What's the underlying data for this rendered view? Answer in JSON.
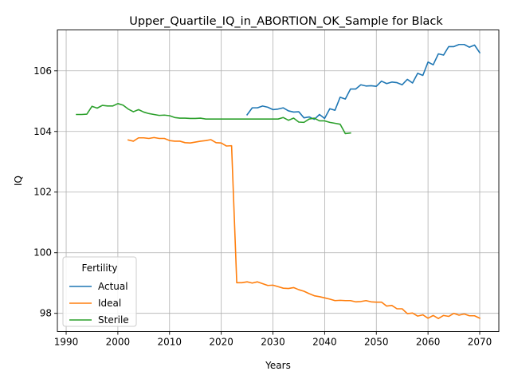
{
  "chart_data": {
    "type": "line",
    "title": "Upper_Quartile_IQ_in_ABORTION_OK_Sample for Black",
    "xlabel": "Years",
    "ylabel": "IQ",
    "xlim": [
      1988.3,
      2073.7
    ],
    "ylim": [
      97.4,
      107.35
    ],
    "x_ticks": [
      1990,
      2000,
      2010,
      2020,
      2030,
      2040,
      2050,
      2060,
      2070
    ],
    "y_ticks": [
      98,
      100,
      102,
      104,
      106
    ],
    "grid": true,
    "legend": {
      "title": "Fertility",
      "placement": "lower-left"
    },
    "series": [
      {
        "name": "Actual",
        "color": "#1f77b4",
        "x": [
          2025,
          2026,
          2027,
          2028,
          2029,
          2030,
          2031,
          2032,
          2033,
          2034,
          2035,
          2036,
          2037,
          2038,
          2039,
          2040,
          2041,
          2042,
          2043,
          2044,
          2045,
          2046,
          2047,
          2048,
          2049,
          2050,
          2051,
          2052,
          2053,
          2054,
          2055,
          2056,
          2057,
          2058,
          2059,
          2060,
          2061,
          2062,
          2063,
          2064,
          2065,
          2066,
          2067,
          2068,
          2069,
          2070
        ],
        "y": [
          104.55,
          104.78,
          104.78,
          104.84,
          104.8,
          104.72,
          104.74,
          104.78,
          104.68,
          104.64,
          104.65,
          104.45,
          104.48,
          104.4,
          104.56,
          104.43,
          104.75,
          104.7,
          105.13,
          105.07,
          105.4,
          105.4,
          105.54,
          105.5,
          105.51,
          105.49,
          105.66,
          105.58,
          105.63,
          105.61,
          105.54,
          105.72,
          105.6,
          105.92,
          105.85,
          106.29,
          106.2,
          106.56,
          106.52,
          106.8,
          106.8,
          106.87,
          106.87,
          106.78,
          106.85,
          106.6
        ]
      },
      {
        "name": "Ideal",
        "color": "#ff7f0e",
        "x": [
          2002,
          2003,
          2004,
          2005,
          2006,
          2007,
          2008,
          2009,
          2010,
          2011,
          2012,
          2013,
          2014,
          2015,
          2016,
          2017,
          2018,
          2019,
          2020,
          2021,
          2022,
          2023,
          2024,
          2025,
          2026,
          2027,
          2028,
          2029,
          2030,
          2031,
          2032,
          2033,
          2034,
          2035,
          2036,
          2037,
          2038,
          2039,
          2040,
          2041,
          2042,
          2043,
          2044,
          2045,
          2046,
          2047,
          2048,
          2049,
          2050,
          2051,
          2052,
          2053,
          2054,
          2055,
          2056,
          2057,
          2058,
          2059,
          2060,
          2061,
          2062,
          2063,
          2064,
          2065,
          2066,
          2067,
          2068,
          2069,
          2070
        ],
        "y": [
          103.72,
          103.68,
          103.79,
          103.79,
          103.77,
          103.8,
          103.77,
          103.77,
          103.7,
          103.68,
          103.68,
          103.63,
          103.62,
          103.65,
          103.68,
          103.7,
          103.73,
          103.63,
          103.62,
          103.52,
          103.53,
          99.01,
          99.01,
          99.04,
          99.0,
          99.04,
          98.98,
          98.92,
          98.93,
          98.88,
          98.83,
          98.82,
          98.85,
          98.78,
          98.73,
          98.65,
          98.58,
          98.55,
          98.51,
          98.47,
          98.42,
          98.43,
          98.42,
          98.42,
          98.38,
          98.39,
          98.42,
          98.38,
          98.37,
          98.37,
          98.24,
          98.26,
          98.15,
          98.15,
          97.99,
          98.01,
          97.91,
          97.95,
          97.84,
          97.93,
          97.83,
          97.93,
          97.9,
          98.0,
          97.94,
          97.98,
          97.92,
          97.92,
          97.84
        ]
      },
      {
        "name": "Sterile",
        "color": "#2ca02c",
        "x": [
          1992,
          1993,
          1994,
          1995,
          1996,
          1997,
          1998,
          1999,
          2000,
          2001,
          2002,
          2003,
          2004,
          2005,
          2006,
          2007,
          2008,
          2009,
          2010,
          2011,
          2012,
          2013,
          2014,
          2015,
          2016,
          2017,
          2018,
          2019,
          2020,
          2021,
          2022,
          2023,
          2024,
          2025,
          2026,
          2027,
          2028,
          2029,
          2030,
          2031,
          2032,
          2033,
          2034,
          2035,
          2036,
          2037,
          2038,
          2039,
          2040,
          2041,
          2042,
          2043,
          2044,
          2045
        ],
        "y": [
          104.56,
          104.56,
          104.57,
          104.83,
          104.77,
          104.86,
          104.84,
          104.84,
          104.92,
          104.87,
          104.74,
          104.65,
          104.72,
          104.64,
          104.59,
          104.56,
          104.53,
          104.54,
          104.52,
          104.46,
          104.44,
          104.44,
          104.43,
          104.43,
          104.44,
          104.41,
          104.41,
          104.41,
          104.41,
          104.41,
          104.41,
          104.41,
          104.41,
          104.41,
          104.41,
          104.41,
          104.41,
          104.41,
          104.41,
          104.41,
          104.46,
          104.37,
          104.44,
          104.31,
          104.3,
          104.41,
          104.44,
          104.35,
          104.35,
          104.3,
          104.27,
          104.24,
          103.93,
          103.95
        ]
      }
    ]
  }
}
